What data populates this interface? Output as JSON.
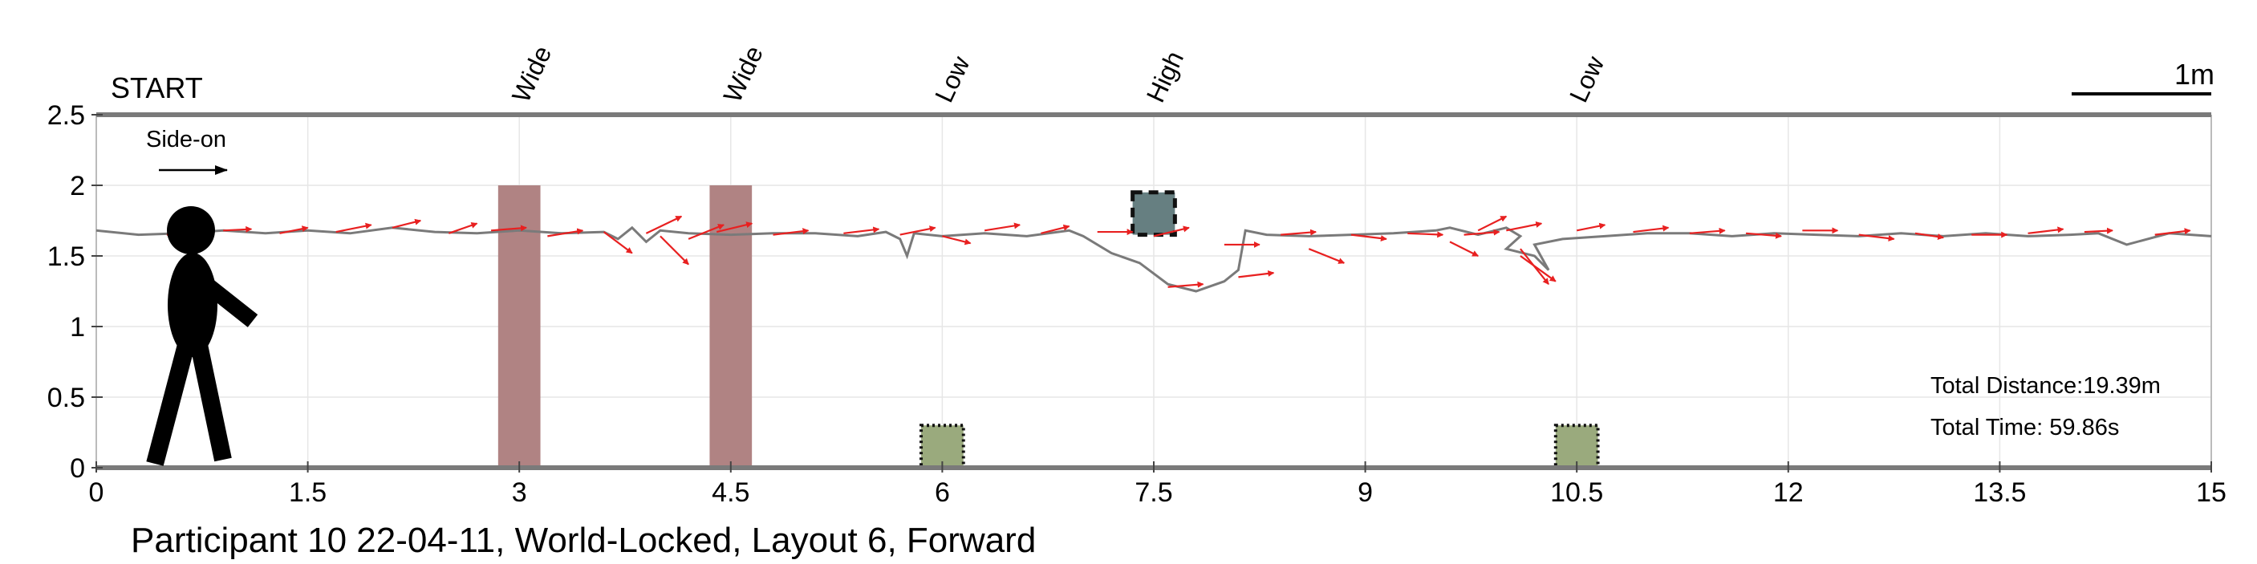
{
  "chart_data": {
    "type": "line",
    "xlim": [
      0,
      15
    ],
    "ylim": [
      0,
      2.5
    ],
    "x_ticks": [
      "0",
      "1.5",
      "3",
      "4.5",
      "6",
      "7.5",
      "9",
      "10.5",
      "12",
      "13.5",
      "15"
    ],
    "y_ticks": [
      "0",
      "0.5",
      "1",
      "1.5",
      "2",
      "2.5"
    ],
    "grid": true,
    "start_label": "START",
    "view_label": "Side-on",
    "scale_label": "1m",
    "obstacle_labels": [
      {
        "x": 3.0,
        "text": "Wide"
      },
      {
        "x": 4.5,
        "text": "Wide"
      },
      {
        "x": 6.0,
        "text": "Low"
      },
      {
        "x": 7.5,
        "text": "High"
      },
      {
        "x": 10.5,
        "text": "Low"
      }
    ],
    "obstacles": [
      {
        "kind": "wide",
        "x0": 2.85,
        "x1": 3.15,
        "y0": 0,
        "y1": 2.0,
        "color": "#b08383"
      },
      {
        "kind": "wide",
        "x0": 4.35,
        "x1": 4.65,
        "y0": 0,
        "y1": 2.0,
        "color": "#b08383"
      },
      {
        "kind": "low",
        "x0": 5.85,
        "x1": 6.15,
        "y0": 0,
        "y1": 0.3,
        "color": "#9aaa7d"
      },
      {
        "kind": "high",
        "x0": 7.35,
        "x1": 7.65,
        "y0": 1.65,
        "y1": 1.95,
        "color": "#667f81"
      },
      {
        "kind": "low",
        "x0": 10.35,
        "x1": 10.65,
        "y0": 0,
        "y1": 0.3,
        "color": "#9aaa7d"
      }
    ],
    "head_path": {
      "name": "",
      "color": "#7a7a7a",
      "x": [
        0,
        0.3,
        0.6,
        0.9,
        1.2,
        1.5,
        1.8,
        2.1,
        2.4,
        2.7,
        3.0,
        3.3,
        3.6,
        3.7,
        3.8,
        3.9,
        4.0,
        4.2,
        4.5,
        4.8,
        5.1,
        5.4,
        5.6,
        5.7,
        5.75,
        5.8,
        6.0,
        6.3,
        6.6,
        6.9,
        7.0,
        7.2,
        7.4,
        7.6,
        7.8,
        8.0,
        8.1,
        8.15,
        8.3,
        8.6,
        8.9,
        9.2,
        9.5,
        9.6,
        9.8,
        10.0,
        10.1,
        10.0,
        10.2,
        10.3,
        10.2,
        10.4,
        10.7,
        11.0,
        11.3,
        11.6,
        11.9,
        12.2,
        12.5,
        12.8,
        13.1,
        13.4,
        13.7,
        14.0,
        14.2,
        14.4,
        14.7,
        15.0
      ],
      "y": [
        1.68,
        1.65,
        1.66,
        1.68,
        1.66,
        1.68,
        1.66,
        1.7,
        1.67,
        1.66,
        1.68,
        1.66,
        1.67,
        1.62,
        1.7,
        1.6,
        1.68,
        1.66,
        1.65,
        1.66,
        1.66,
        1.64,
        1.67,
        1.62,
        1.5,
        1.66,
        1.64,
        1.66,
        1.64,
        1.68,
        1.64,
        1.52,
        1.45,
        1.3,
        1.25,
        1.32,
        1.4,
        1.68,
        1.65,
        1.64,
        1.65,
        1.66,
        1.68,
        1.7,
        1.65,
        1.7,
        1.64,
        1.55,
        1.5,
        1.4,
        1.58,
        1.62,
        1.64,
        1.66,
        1.66,
        1.64,
        1.66,
        1.65,
        1.64,
        1.66,
        1.64,
        1.66,
        1.64,
        1.65,
        1.66,
        1.58,
        1.66,
        1.64
      ]
    },
    "gaze_arrows": {
      "color": "#e82020",
      "x": [
        0.5,
        0.9,
        1.3,
        1.7,
        2.1,
        2.5,
        2.8,
        3.2,
        3.6,
        3.9,
        4.0,
        4.2,
        4.4,
        4.8,
        5.3,
        5.7,
        6.0,
        6.3,
        6.7,
        7.1,
        7.5,
        8.0,
        7.6,
        8.1,
        8.4,
        8.6,
        8.9,
        9.3,
        9.6,
        9.8,
        9.7,
        10.0,
        10.1,
        10.1,
        10.5,
        10.9,
        11.3,
        11.7,
        12.1,
        12.5,
        12.9,
        13.3,
        13.7,
        14.1,
        14.6
      ],
      "y": [
        1.65,
        1.68,
        1.66,
        1.67,
        1.7,
        1.66,
        1.68,
        1.64,
        1.67,
        1.66,
        1.64,
        1.62,
        1.67,
        1.65,
        1.66,
        1.65,
        1.64,
        1.68,
        1.66,
        1.67,
        1.64,
        1.58,
        1.28,
        1.35,
        1.65,
        1.55,
        1.65,
        1.66,
        1.6,
        1.68,
        1.65,
        1.68,
        1.55,
        1.5,
        1.68,
        1.67,
        1.66,
        1.66,
        1.68,
        1.65,
        1.66,
        1.65,
        1.66,
        1.67,
        1.65
      ],
      "dx": [
        0.25,
        0.2,
        0.2,
        0.25,
        0.2,
        0.2,
        0.25,
        0.25,
        0.2,
        0.25,
        0.2,
        0.25,
        0.25,
        0.25,
        0.25,
        0.25,
        0.2,
        0.25,
        0.2,
        0.25,
        0.25,
        0.25,
        0.25,
        0.25,
        0.25,
        0.25,
        0.25,
        0.25,
        0.2,
        0.2,
        0.25,
        0.25,
        0.2,
        0.25,
        0.2,
        0.25,
        0.25,
        0.25,
        0.25,
        0.25,
        0.2,
        0.25,
        0.25,
        0.2,
        0.25
      ],
      "dy": [
        0.02,
        0.01,
        0.04,
        0.05,
        0.05,
        0.07,
        0.02,
        0.04,
        -0.15,
        0.12,
        -0.2,
        0.1,
        0.06,
        0.03,
        0.03,
        0.05,
        -0.05,
        0.04,
        0.05,
        0.0,
        0.06,
        0.0,
        0.02,
        0.03,
        0.02,
        -0.1,
        -0.03,
        -0.01,
        -0.1,
        0.1,
        0.02,
        0.05,
        -0.25,
        -0.18,
        0.04,
        0.03,
        0.02,
        -0.02,
        0.0,
        -0.03,
        -0.03,
        0.0,
        0.03,
        0.01,
        0.03
      ]
    },
    "annotations": {
      "total_distance": "Total Distance:19.39m",
      "total_time": "Total Time: 59.86s"
    },
    "title": "Participant 10 22-04-11, World-Locked, Layout 6, Forward"
  }
}
